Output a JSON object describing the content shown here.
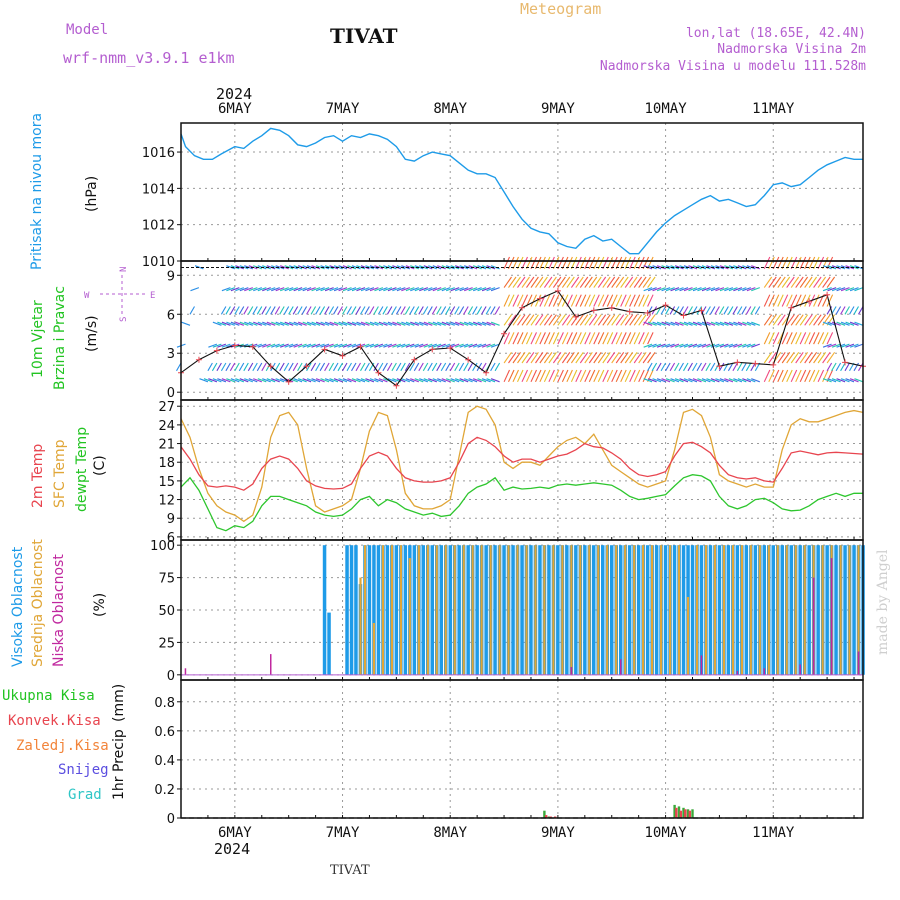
{
  "header": {
    "model_label": "Model",
    "model_name": "wrf-nmm_v3.9.1 e1km",
    "station": "TIVAT",
    "title": "Meteogram",
    "coords": "lon,lat (18.65E, 42.4N)",
    "altitude": "Nadmorska Visina 2m",
    "model_altitude": "Nadmorska Visina u modelu 111.528m",
    "watermark": "made by Angel",
    "footer_station": "TIVAT"
  },
  "x_axis": {
    "year": "2024",
    "days": [
      "6MAY",
      "7MAY",
      "8MAY",
      "9MAY",
      "10MAY",
      "11MAY"
    ],
    "hour_range": [
      -12,
      140
    ]
  },
  "colors": {
    "pressure": "#1e9be8",
    "temp2m": "#e8454f",
    "sfc": "#e0a637",
    "dewpoint": "#2ec62e",
    "high_cloud": "#1e9be8",
    "mid_cloud": "#e0a637",
    "low_cloud": "#c0289f",
    "grid": "#9a9a9a"
  },
  "chart_data": [
    {
      "type": "line",
      "name": "pressure",
      "ylabel_lines": [
        "Pritisak na nivou mora"
      ],
      "unit": "(hPa)",
      "ylim": [
        1010,
        1017.6
      ],
      "yticks": [
        1010,
        1012,
        1014,
        1016
      ],
      "x": [
        -12,
        -11,
        -9,
        -7,
        -5,
        -3,
        0,
        2,
        4,
        6,
        8,
        10,
        12,
        14,
        16,
        18,
        20,
        22,
        24,
        26,
        28,
        30,
        32,
        34,
        36,
        38,
        40,
        42,
        44,
        46,
        48,
        50,
        52,
        54,
        56,
        58,
        60,
        62,
        64,
        66,
        68,
        70,
        72,
        74,
        76,
        78,
        80,
        82,
        84,
        86,
        88,
        90,
        92,
        94,
        96,
        98,
        100,
        102,
        104,
        106,
        108,
        110,
        112,
        114,
        116,
        118,
        120,
        122,
        124,
        126,
        128,
        130,
        132,
        134,
        136,
        138,
        140
      ],
      "values": [
        1017.0,
        1016.3,
        1015.8,
        1015.6,
        1015.6,
        1015.9,
        1016.3,
        1016.2,
        1016.6,
        1016.9,
        1017.3,
        1017.2,
        1016.9,
        1016.4,
        1016.3,
        1016.5,
        1016.8,
        1016.9,
        1016.6,
        1016.9,
        1016.8,
        1017.0,
        1016.9,
        1016.7,
        1016.3,
        1015.6,
        1015.5,
        1015.8,
        1016.0,
        1015.9,
        1015.8,
        1015.4,
        1015.0,
        1014.8,
        1014.8,
        1014.6,
        1013.8,
        1013.0,
        1012.3,
        1011.8,
        1011.6,
        1011.5,
        1011.0,
        1010.8,
        1010.7,
        1011.2,
        1011.4,
        1011.1,
        1011.2,
        1010.8,
        1010.4,
        1010.4,
        1011.0,
        1011.6,
        1012.1,
        1012.5,
        1012.8,
        1013.1,
        1013.4,
        1013.6,
        1013.3,
        1013.4,
        1013.2,
        1013.0,
        1013.1,
        1013.6,
        1014.2,
        1014.3,
        1014.1,
        1014.2,
        1014.6,
        1015.0,
        1015.3,
        1015.5,
        1015.7,
        1015.6,
        1015.6
      ]
    },
    {
      "type": "line",
      "name": "wind",
      "ylabel_lines": [
        "10m Vjetar",
        "Brzina i Pravac"
      ],
      "unit": "(m/s)",
      "compass": [
        "N",
        "S",
        "W",
        "E"
      ],
      "ylim": [
        -0.6,
        10.1
      ],
      "yticks": [
        0,
        3,
        6,
        9
      ],
      "x": [
        -12,
        -8,
        -4,
        0,
        4,
        8,
        12,
        16,
        20,
        24,
        28,
        32,
        36,
        40,
        44,
        48,
        52,
        56,
        60,
        64,
        68,
        72,
        76,
        80,
        84,
        88,
        92,
        96,
        100,
        104,
        108,
        112,
        116,
        120,
        124,
        128,
        132,
        136,
        140
      ],
      "values": [
        1.5,
        2.5,
        3.2,
        3.6,
        3.5,
        2.0,
        0.8,
        2.0,
        3.3,
        2.8,
        3.5,
        1.5,
        0.5,
        2.5,
        3.3,
        3.4,
        2.5,
        1.5,
        4.5,
        6.5,
        7.2,
        7.8,
        5.8,
        6.3,
        6.5,
        6.2,
        6.1,
        6.7,
        5.9,
        6.3,
        2.0,
        2.3,
        2.2,
        2.1,
        6.5,
        7.0,
        7.5,
        2.3,
        2.0
      ]
    },
    {
      "type": "line",
      "name": "temperature",
      "ylabel_lines": [
        "2m Temp",
        "SFC Temp",
        "dewpt Temp"
      ],
      "unit": "(C)",
      "ylim": [
        5.5,
        28.0
      ],
      "yticks": [
        6,
        9,
        12,
        15,
        18,
        21,
        24,
        27
      ],
      "x": [
        -12,
        -10,
        -8,
        -6,
        -4,
        -2,
        0,
        2,
        4,
        6,
        8,
        10,
        12,
        14,
        16,
        18,
        20,
        22,
        24,
        26,
        28,
        30,
        32,
        34,
        36,
        38,
        40,
        42,
        44,
        46,
        48,
        50,
        52,
        54,
        56,
        58,
        60,
        62,
        64,
        66,
        68,
        70,
        72,
        74,
        76,
        78,
        80,
        82,
        84,
        86,
        88,
        90,
        92,
        94,
        96,
        98,
        100,
        102,
        104,
        106,
        108,
        110,
        112,
        114,
        116,
        118,
        120,
        122,
        124,
        126,
        128,
        130,
        132,
        134,
        136,
        138,
        140
      ],
      "series": [
        {
          "name": "2m Temp",
          "values": [
            20.5,
            18.5,
            16.0,
            14.2,
            14.0,
            14.2,
            14.0,
            13.5,
            14.5,
            17.0,
            18.5,
            19.0,
            18.5,
            17.0,
            15.0,
            14.2,
            13.8,
            13.7,
            13.8,
            14.5,
            17.0,
            19.0,
            19.6,
            19.0,
            17.0,
            15.5,
            15.0,
            14.8,
            14.8,
            15.0,
            15.5,
            18.0,
            21.0,
            22.0,
            21.5,
            20.5,
            19.0,
            18.0,
            18.5,
            18.5,
            18.0,
            18.5,
            19.0,
            19.3,
            20.0,
            21.0,
            20.5,
            20.3,
            19.5,
            18.5,
            17.0,
            16.0,
            15.7,
            16.0,
            16.5,
            19.0,
            21.0,
            21.2,
            20.5,
            19.5,
            17.5,
            16.0,
            15.5,
            15.3,
            15.5,
            15.0,
            14.8,
            17.0,
            19.5,
            19.8,
            19.5,
            19.2,
            19.5,
            19.6,
            19.5,
            19.4,
            19.3
          ]
        },
        {
          "name": "SFC Temp",
          "values": [
            25.0,
            22.0,
            17.0,
            13.0,
            11.0,
            10.0,
            9.5,
            8.5,
            9.5,
            14.0,
            22.0,
            25.5,
            26.0,
            24.0,
            17.0,
            11.0,
            10.0,
            10.5,
            11.0,
            12.0,
            17.0,
            23.0,
            26.0,
            25.5,
            20.0,
            13.0,
            11.0,
            10.5,
            10.5,
            11.0,
            12.0,
            19.0,
            26.0,
            27.0,
            26.5,
            24.0,
            18.0,
            17.0,
            18.0,
            18.0,
            17.5,
            19.0,
            20.5,
            21.5,
            22.0,
            21.0,
            22.5,
            20.0,
            17.5,
            16.5,
            15.5,
            14.5,
            14.0,
            14.5,
            15.0,
            20.0,
            26.0,
            26.5,
            25.5,
            22.0,
            16.0,
            15.0,
            14.5,
            14.0,
            14.5,
            14.0,
            14.0,
            20.0,
            24.0,
            25.0,
            24.5,
            24.5,
            25.0,
            25.5,
            26.0,
            26.3,
            26.0
          ]
        },
        {
          "name": "dewpt Temp",
          "values": [
            14.0,
            15.5,
            13.5,
            10.5,
            7.5,
            7.0,
            7.8,
            7.5,
            8.5,
            11.0,
            12.5,
            12.5,
            12.0,
            11.5,
            11.0,
            10.0,
            9.5,
            9.3,
            9.5,
            10.5,
            12.0,
            12.5,
            11.0,
            12.0,
            11.5,
            10.5,
            10.0,
            9.5,
            9.8,
            9.3,
            9.5,
            11.0,
            13.0,
            14.0,
            14.5,
            15.5,
            13.5,
            14.0,
            13.7,
            13.8,
            14.0,
            13.8,
            14.3,
            14.5,
            14.3,
            14.5,
            14.7,
            14.5,
            14.3,
            13.5,
            12.5,
            12.0,
            12.2,
            12.5,
            12.8,
            14.2,
            15.5,
            16.0,
            15.8,
            15.0,
            12.5,
            11.0,
            10.5,
            11.0,
            12.0,
            12.2,
            11.5,
            10.5,
            10.2,
            10.3,
            11.0,
            12.0,
            12.5,
            13.0,
            12.5,
            13.0,
            13.0
          ]
        }
      ]
    },
    {
      "type": "bar",
      "name": "cloud",
      "ylabel_lines": [
        "Visoka Oblacnost",
        "Srednja Oblacnost",
        "Niska Oblacnost"
      ],
      "unit": "(%)",
      "ylim": [
        -4,
        104
      ],
      "yticks": [
        0,
        25,
        50,
        75,
        100
      ],
      "series": [
        {
          "name": "Visoka Oblacnost",
          "x": [
            20,
            21,
            22,
            23,
            24,
            25,
            26,
            27,
            28,
            29,
            30,
            31,
            32,
            33,
            34,
            35,
            36,
            37,
            38,
            39,
            40,
            41,
            42,
            43,
            44,
            45,
            46,
            47,
            48,
            49,
            50,
            51,
            52,
            53,
            54,
            55,
            56,
            57,
            58,
            59,
            60,
            61,
            62,
            63,
            64,
            65,
            66,
            67,
            68,
            69,
            70,
            71,
            72,
            73,
            74,
            75,
            76,
            77,
            78,
            79,
            80,
            81,
            82,
            83,
            84,
            85,
            86,
            87,
            88,
            89,
            90,
            91,
            92,
            93,
            94,
            95,
            96,
            97,
            98,
            99,
            100,
            101,
            102,
            103,
            104,
            105,
            106,
            107,
            108,
            109,
            110,
            111,
            112,
            113,
            114,
            115,
            116,
            117,
            118,
            119,
            120,
            121,
            122,
            123,
            124,
            125,
            126,
            127,
            128,
            129,
            130,
            131,
            132,
            133,
            134,
            135,
            136,
            137,
            138,
            139,
            140
          ],
          "values": [
            100,
            48,
            0,
            0,
            0,
            100,
            100,
            100,
            70,
            100,
            100,
            100,
            100,
            100,
            100,
            100,
            100,
            100,
            100,
            100,
            100,
            100,
            100,
            100,
            100,
            100,
            100,
            100,
            100,
            100,
            100,
            100,
            100,
            100,
            100,
            100,
            100,
            100,
            100,
            100,
            100,
            100,
            100,
            100,
            100,
            100,
            100,
            100,
            100,
            100,
            100,
            100,
            100,
            100,
            100,
            100,
            100,
            100,
            100,
            100,
            100,
            100,
            100,
            100,
            100,
            100,
            100,
            100,
            100,
            100,
            100,
            100,
            100,
            100,
            100,
            100,
            100,
            100,
            100,
            100,
            100,
            100,
            100,
            100,
            100,
            100,
            100,
            100,
            100,
            100,
            100,
            100,
            100,
            100,
            100,
            100,
            100,
            100,
            100,
            100,
            100,
            100,
            100,
            100,
            100,
            100,
            100,
            100,
            100,
            100,
            100,
            100,
            100,
            100,
            100,
            100,
            100,
            100,
            100,
            100,
            100
          ]
        },
        {
          "name": "Srednja Oblacnost",
          "x": [
            28,
            29,
            31,
            33,
            35,
            37,
            39,
            41,
            43,
            45,
            47,
            49,
            51,
            53,
            55,
            57,
            59,
            61,
            63,
            65,
            67,
            69,
            71,
            73,
            75,
            77,
            79,
            81,
            83,
            85,
            87,
            89,
            91,
            93,
            95,
            97,
            99,
            101,
            103,
            105,
            107,
            109,
            111,
            113,
            115,
            117,
            119,
            121,
            123,
            125,
            127,
            129,
            131,
            133,
            135,
            137,
            139
          ],
          "values": [
            75,
            100,
            40,
            100,
            100,
            100,
            90,
            100,
            100,
            100,
            100,
            100,
            100,
            100,
            100,
            100,
            100,
            100,
            100,
            100,
            100,
            100,
            100,
            100,
            100,
            100,
            100,
            100,
            100,
            100,
            100,
            100,
            100,
            100,
            100,
            100,
            100,
            60,
            100,
            100,
            100,
            100,
            100,
            100,
            100,
            100,
            100,
            100,
            100,
            100,
            100,
            100,
            100,
            100,
            100,
            100,
            100
          ]
        },
        {
          "name": "Niska Oblacnost",
          "x": [
            -11,
            8,
            75,
            86,
            104,
            112,
            118,
            126,
            129,
            133,
            139
          ],
          "values": [
            5,
            16,
            6,
            12,
            15,
            3,
            5,
            8,
            75,
            90,
            18
          ]
        }
      ]
    },
    {
      "type": "bar",
      "name": "precip",
      "ylabel_lines": [
        "1hr Precip"
      ],
      "unit": "(mm)",
      "legend": [
        "Ukupna Kisa",
        "Konvek.Kisa",
        "Zaledj.Kisa",
        "Snijeg",
        "Grad"
      ],
      "ylim": [
        0,
        0.95
      ],
      "yticks": [
        0,
        0.2,
        0.4,
        0.6,
        0.8
      ],
      "series": [
        {
          "name": "Ukupna Kisa",
          "x": [
            69,
            70,
            98,
            99,
            100,
            101,
            102
          ],
          "values": [
            0.05,
            0.01,
            0.09,
            0.08,
            0.07,
            0.06,
            0.06
          ]
        },
        {
          "name": "Konvek.Kisa",
          "x": [
            69.4,
            70.4,
            71.4,
            98.4,
            99.4,
            100.4,
            101.4
          ],
          "values": [
            0.02,
            0.01,
            0.01,
            0.07,
            0.05,
            0.06,
            0.05
          ]
        }
      ]
    }
  ]
}
